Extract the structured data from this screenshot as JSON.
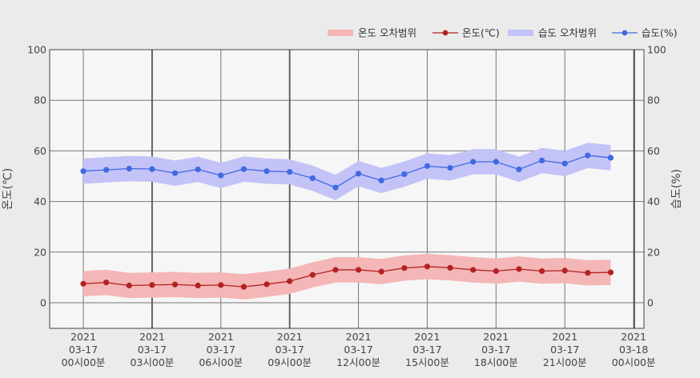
{
  "chart_data": {
    "type": "line",
    "ylabel_left": "온도(℃)",
    "ylabel_right": "습도(%)",
    "ylim": [
      -10,
      100
    ],
    "yticks": [
      0,
      20,
      40,
      60,
      80,
      100
    ],
    "xlim": [
      0,
      24
    ],
    "xticks": [
      {
        "x": 0,
        "label": [
          "2021",
          "03-17",
          "00시00분"
        ]
      },
      {
        "x": 3,
        "label": [
          "2021",
          "03-17",
          "03시00분"
        ]
      },
      {
        "x": 6,
        "label": [
          "2021",
          "03-17",
          "06시00분"
        ]
      },
      {
        "x": 9,
        "label": [
          "2021",
          "03-17",
          "09시00분"
        ]
      },
      {
        "x": 12,
        "label": [
          "2021",
          "03-17",
          "12시00분"
        ]
      },
      {
        "x": 15,
        "label": [
          "2021",
          "03-17",
          "15시00분"
        ]
      },
      {
        "x": 18,
        "label": [
          "2021",
          "03-17",
          "18시00분"
        ]
      },
      {
        "x": 21,
        "label": [
          "2021",
          "03-17",
          "21시00분"
        ]
      },
      {
        "x": 24,
        "label": [
          "2021",
          "03-18",
          "00시00분"
        ]
      }
    ],
    "x": [
      0,
      1,
      2,
      3,
      4,
      5,
      6,
      7,
      8,
      9,
      10,
      11,
      12,
      13,
      14,
      15,
      16,
      17,
      18,
      19,
      20,
      21,
      22,
      23
    ],
    "series": [
      {
        "name": "온도(℃)",
        "axis": "left",
        "color": "#b22222",
        "values": [
          7.5,
          8,
          6.8,
          7,
          7.2,
          6.8,
          7,
          6.3,
          7.3,
          8.5,
          11,
          13,
          13,
          12.3,
          13.7,
          14.3,
          13.8,
          13,
          12.5,
          13.3,
          12.5,
          12.7,
          11.8,
          12
        ]
      },
      {
        "name": "습도(%)",
        "axis": "right",
        "color": "#4169e1",
        "values": [
          52,
          52.5,
          53,
          52.8,
          51.2,
          52.7,
          50.3,
          52.8,
          52,
          51.7,
          49.2,
          45.5,
          51,
          48.3,
          50.8,
          54,
          53.3,
          55.7,
          55.7,
          52.7,
          56.2,
          55,
          58.2,
          57.3
        ]
      }
    ],
    "bands": [
      {
        "name": "온도 오차범위",
        "axis": "left",
        "color": "#f4b6b6",
        "lower": [
          2.5,
          3,
          1.8,
          2,
          2.2,
          1.8,
          2,
          1.3,
          2.3,
          3.5,
          6,
          8,
          8,
          7.3,
          8.7,
          9.3,
          8.8,
          8,
          7.5,
          8.3,
          7.5,
          7.7,
          6.8,
          7
        ],
        "upper": [
          12.5,
          13,
          11.8,
          12,
          12.2,
          11.8,
          12,
          11.3,
          12.3,
          13.5,
          16,
          18,
          18,
          17.3,
          18.7,
          19.3,
          18.8,
          18,
          17.5,
          18.3,
          17.5,
          17.7,
          16.8,
          17
        ]
      },
      {
        "name": "습도 오차범위",
        "axis": "right",
        "color": "#c3c3f8",
        "lower": [
          47,
          47.5,
          48,
          47.8,
          46.2,
          47.7,
          45.3,
          47.8,
          47,
          46.7,
          44.2,
          40.5,
          46,
          43.3,
          45.8,
          49,
          48.3,
          50.7,
          50.7,
          47.7,
          51.2,
          50,
          53.2,
          52.3
        ],
        "upper": [
          57,
          57.5,
          58,
          57.8,
          56.2,
          57.7,
          55.3,
          57.8,
          57,
          56.7,
          54.2,
          50.5,
          56,
          53.3,
          55.8,
          59,
          58.3,
          60.7,
          60.7,
          57.7,
          61.2,
          60,
          63.2,
          62.3
        ]
      }
    ],
    "legend": {
      "placement": "top-right",
      "items": [
        {
          "label": "온도 오차범위",
          "kind": "band",
          "color": "#f4b6b6"
        },
        {
          "label": "온도(℃)",
          "kind": "line",
          "color": "#b22222"
        },
        {
          "label": "습도 오차범위",
          "kind": "band",
          "color": "#c3c3f8"
        },
        {
          "label": "습도(%)",
          "kind": "line",
          "color": "#4169e1"
        }
      ]
    },
    "grid": true,
    "colors": {
      "background": "#ebebeb",
      "plot_background": "#f6f6f6",
      "grid": "#777777",
      "major_grid": "#555555",
      "frame": "#444444"
    }
  }
}
